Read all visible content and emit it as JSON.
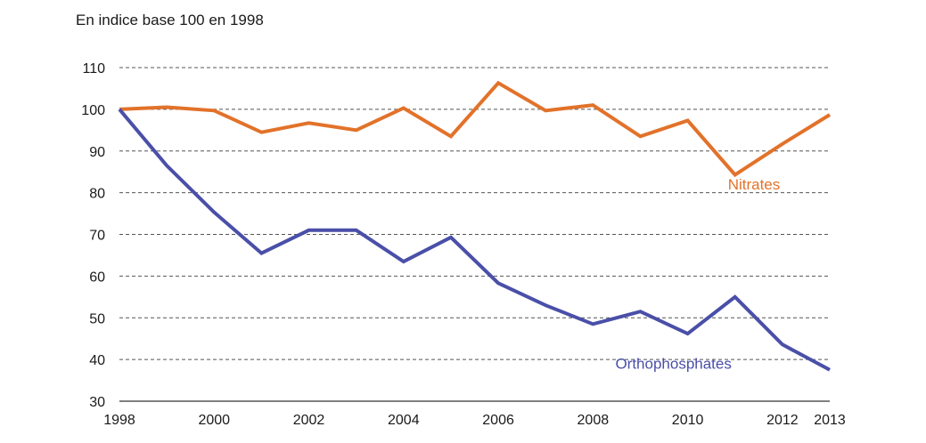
{
  "chart_data": {
    "type": "line",
    "unit_label": "En indice base 100 en 1998",
    "x": [
      1998,
      1999,
      2000,
      2001,
      2002,
      2003,
      2004,
      2005,
      2006,
      2007,
      2008,
      2009,
      2010,
      2011,
      2012,
      2013
    ],
    "x_tick_labels": [
      "1998",
      "2000",
      "2002",
      "2004",
      "2006",
      "2008",
      "2010",
      "2012",
      "2013"
    ],
    "y_tick_labels": [
      "110",
      "100",
      "90",
      "80",
      "70",
      "60",
      "50",
      "40",
      "30"
    ],
    "ylim": [
      30,
      110
    ],
    "xlim": [
      1998,
      2013
    ],
    "grid": "horizontal dashed",
    "series": [
      {
        "name": "Nitrates",
        "color": "#e2722a",
        "values": [
          100,
          100.5,
          99.7,
          94.5,
          96.7,
          95,
          100.3,
          93.5,
          106.3,
          99.7,
          101,
          93.5,
          97.3,
          84.3,
          91.7,
          98.7
        ]
      },
      {
        "name": "Orthophosphates",
        "color": "#4a4fa8",
        "values": [
          100,
          86.5,
          75.3,
          65.5,
          71,
          71,
          63.5,
          69.3,
          58.3,
          53,
          48.5,
          51.5,
          46.2,
          55,
          43.6,
          37.5
        ]
      }
    ]
  }
}
